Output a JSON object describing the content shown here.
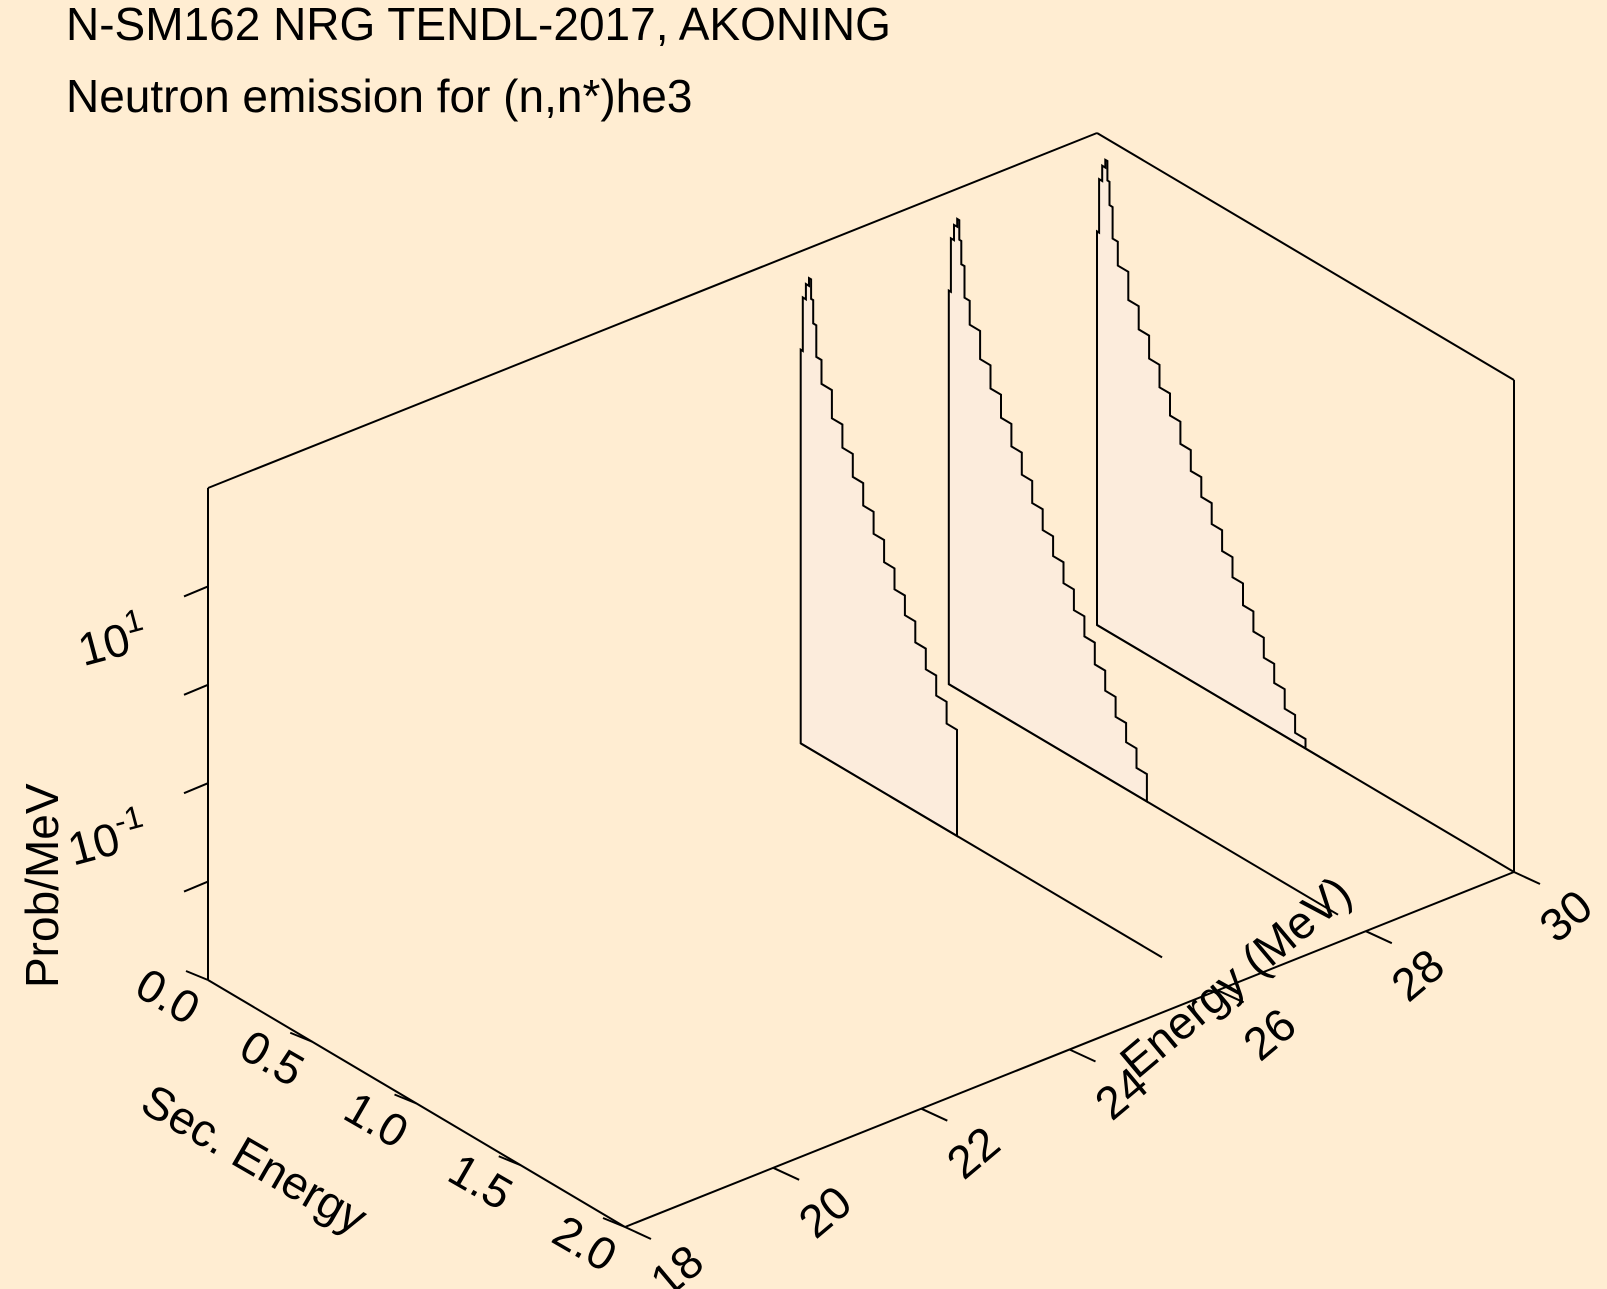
{
  "colors": {
    "background": "#ffedd2",
    "curve_fill": "#fcecdc",
    "stroke": "#000000"
  },
  "chart_data": {
    "type": "area",
    "projection": "3d-waterfall",
    "title": "N-SM162 NRG TENDL-2017, AKONING",
    "subtitle": "Neutron emission for (n,n*)he3",
    "xlabel": "Sec. Energy",
    "ylabel": "Energy (MeV)",
    "zlabel": "Prob/MeV",
    "x_range": [
      0.0,
      2.0
    ],
    "y_range": [
      18,
      30
    ],
    "z_scale": "log",
    "z_range": [
      0.001,
      100
    ],
    "x_ticks": [
      "0.0",
      "0.5",
      "1.0",
      "1.5",
      "2.0"
    ],
    "y_ticks": [
      "18",
      "20",
      "22",
      "24",
      "26",
      "28",
      "30"
    ],
    "z_ticks": [
      {
        "base": "10",
        "exp": "1"
      },
      {
        "base": "10",
        "exp": "-1"
      }
    ],
    "series": [
      {
        "incident_energy": 26,
        "x": [
          0.0,
          0.01,
          0.025,
          0.04,
          0.05,
          0.06,
          0.075,
          0.1,
          0.15,
          0.2,
          0.25,
          0.3,
          0.35,
          0.4,
          0.45,
          0.5,
          0.55,
          0.6,
          0.65,
          0.7
        ],
        "z": [
          10.0,
          35.0,
          50.0,
          60.0,
          38.0,
          22.0,
          10.5,
          6.0,
          3.1,
          1.8,
          1.05,
          0.62,
          0.37,
          0.22,
          0.135,
          0.085,
          0.052,
          0.032,
          0.02,
          0.012
        ]
      },
      {
        "incident_energy": 28,
        "x": [
          0.0,
          0.01,
          0.025,
          0.04,
          0.05,
          0.06,
          0.075,
          0.1,
          0.15,
          0.2,
          0.25,
          0.3,
          0.35,
          0.4,
          0.45,
          0.5,
          0.55,
          0.6,
          0.65,
          0.7,
          0.75,
          0.8,
          0.85,
          0.9
        ],
        "z": [
          10.0,
          35.0,
          50.0,
          60.0,
          38.0,
          22.0,
          10.5,
          6.0,
          3.1,
          1.8,
          1.05,
          0.62,
          0.37,
          0.22,
          0.135,
          0.085,
          0.052,
          0.032,
          0.02,
          0.012,
          0.0075,
          0.0047,
          0.003,
          0.0019
        ]
      },
      {
        "incident_energy": 30,
        "x": [
          0.0,
          0.01,
          0.025,
          0.04,
          0.05,
          0.06,
          0.075,
          0.1,
          0.15,
          0.2,
          0.25,
          0.3,
          0.35,
          0.4,
          0.45,
          0.5,
          0.55,
          0.6,
          0.65,
          0.7,
          0.75,
          0.8,
          0.85,
          0.9,
          0.95,
          1.0,
          1.05,
          1.1,
          1.15
        ],
        "z": [
          10.0,
          35.0,
          50.0,
          60.0,
          38.0,
          22.0,
          10.5,
          6.0,
          3.1,
          1.8,
          1.05,
          0.62,
          0.37,
          0.22,
          0.135,
          0.085,
          0.052,
          0.032,
          0.02,
          0.012,
          0.0075,
          0.0047,
          0.003,
          0.0019,
          0.00125,
          0.00085,
          0.00058,
          0.0004,
          0.00028
        ]
      }
    ]
  }
}
